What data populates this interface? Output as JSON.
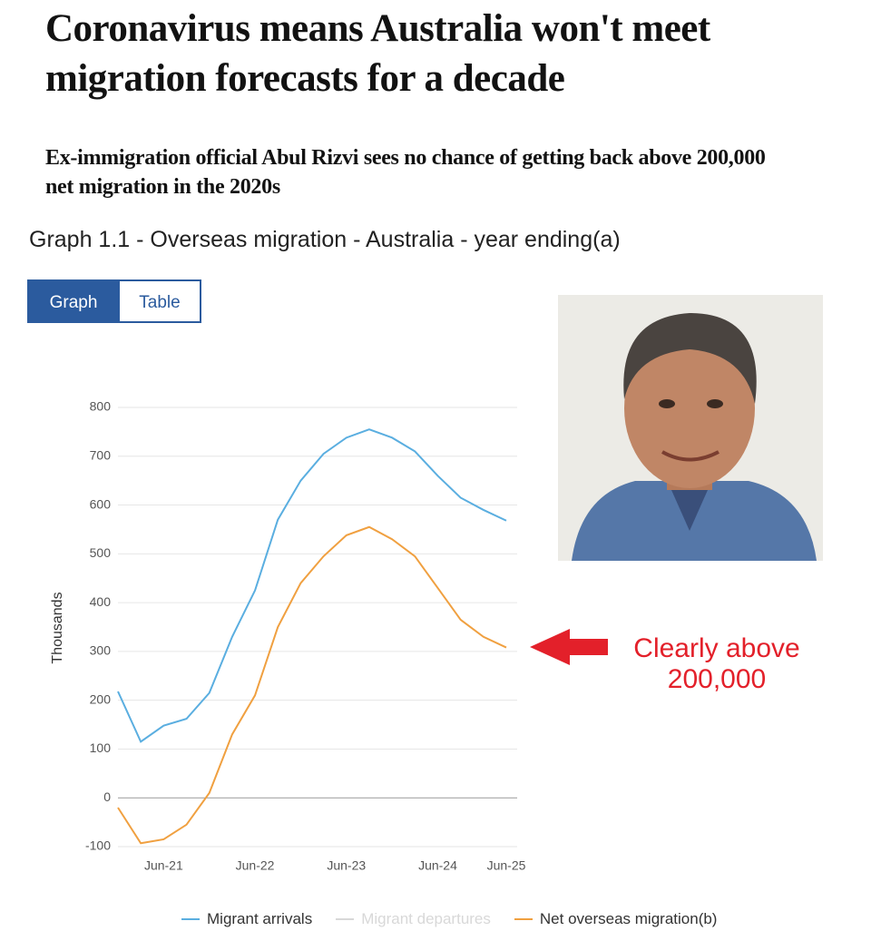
{
  "header": {
    "title": "Coronavirus means Australia won't meet migration forecasts for a decade",
    "subtitle": "Ex-immigration official Abul Rizvi sees no chance of getting back above 200,000 net migration in the 2020s"
  },
  "tabs": [
    "Graph",
    "Table"
  ],
  "chart_data": {
    "type": "line",
    "title": "Graph 1.1 - Overseas migration - Australia - year ending(a)",
    "ylabel": "Thousands",
    "categories": [
      null,
      null,
      "Jun-21",
      null,
      null,
      null,
      "Jun-22",
      null,
      null,
      null,
      "Jun-23",
      null,
      null,
      null,
      "Jun-24",
      null,
      null,
      "Jun-25"
    ],
    "series": [
      {
        "name": "Migrant arrivals",
        "color": "#5aaee0",
        "values": [
          218,
          115,
          148,
          162,
          215,
          330,
          425,
          570,
          650,
          705,
          738,
          755,
          738,
          710,
          660,
          615,
          590,
          568
        ]
      },
      {
        "name": "Migrant departures",
        "color": "#d8d8d8",
        "hidden": true
      },
      {
        "name": "Net overseas migration(b)",
        "color": "#f0a040",
        "values": [
          -20,
          -93,
          -85,
          -55,
          10,
          130,
          210,
          350,
          440,
          495,
          538,
          555,
          530,
          495,
          430,
          365,
          330,
          308
        ]
      }
    ],
    "ylim": [
      -100,
      800
    ],
    "yticks": [
      -100,
      0,
      100,
      200,
      300,
      400,
      500,
      600,
      700,
      800
    ],
    "grid": true,
    "annotation": "Clearly above 200,000"
  }
}
